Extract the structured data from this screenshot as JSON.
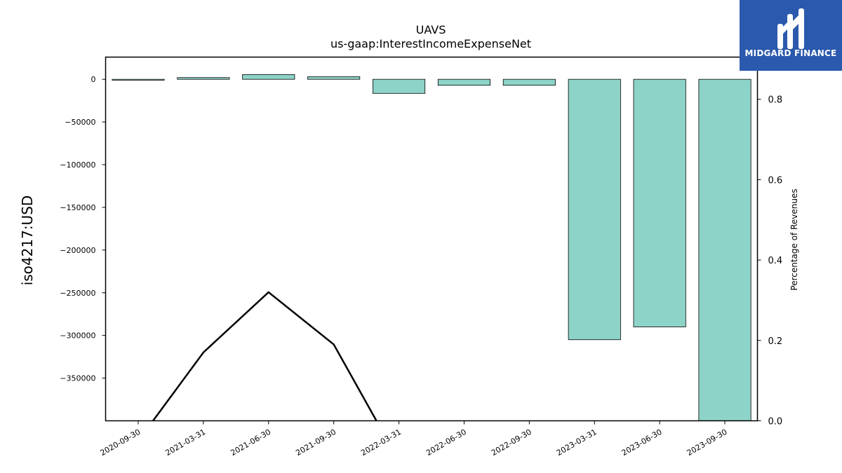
{
  "brand": {
    "name": "MIDGARD FINANCE",
    "bg_color": "#2b59ad",
    "logo_icon": "midgard-logo-icon"
  },
  "chart_data": {
    "type": "bar",
    "title": "UAVS",
    "subtitle": "us-gaap:InterestIncomeExpenseNet",
    "ylabel": "iso4217:USD",
    "y2label": "Percentage of Revenues",
    "categories": [
      "2020-09-30",
      "2021-03-31",
      "2021-06-30",
      "2021-09-30",
      "2022-03-31",
      "2022-06-30",
      "2022-09-30",
      "2023-03-31",
      "2023-06-30",
      "2023-09-30"
    ],
    "series": [
      {
        "values": [
          -1000,
          2000,
          5500,
          3000,
          -16500,
          -7000,
          -7000,
          -305000,
          -290000,
          -420000
        ],
        "color": "#8dd3c7"
      },
      {
        "type": "line",
        "axis": "right",
        "values": [
          -0.05,
          0.17,
          0.32,
          0.19,
          -0.1,
          null,
          null,
          null,
          null,
          null
        ],
        "color": "#000000"
      }
    ],
    "ylim": [
      -400000,
      26000
    ],
    "y_ticks": [
      "0",
      "−50000",
      "−100000",
      "−150000",
      "−200000",
      "−250000",
      "−300000",
      "−350000"
    ],
    "y_tick_values": [
      0,
      -50000,
      -100000,
      -150000,
      -200000,
      -250000,
      -300000,
      -350000
    ],
    "y2lim": [
      0,
      0.905
    ],
    "y2_ticks": [
      "0.0",
      "0.2",
      "0.4",
      "0.6",
      "0.8"
    ],
    "y2_tick_values": [
      0,
      0.2,
      0.4,
      0.6,
      0.8
    ],
    "grid": false,
    "legend": "none"
  }
}
